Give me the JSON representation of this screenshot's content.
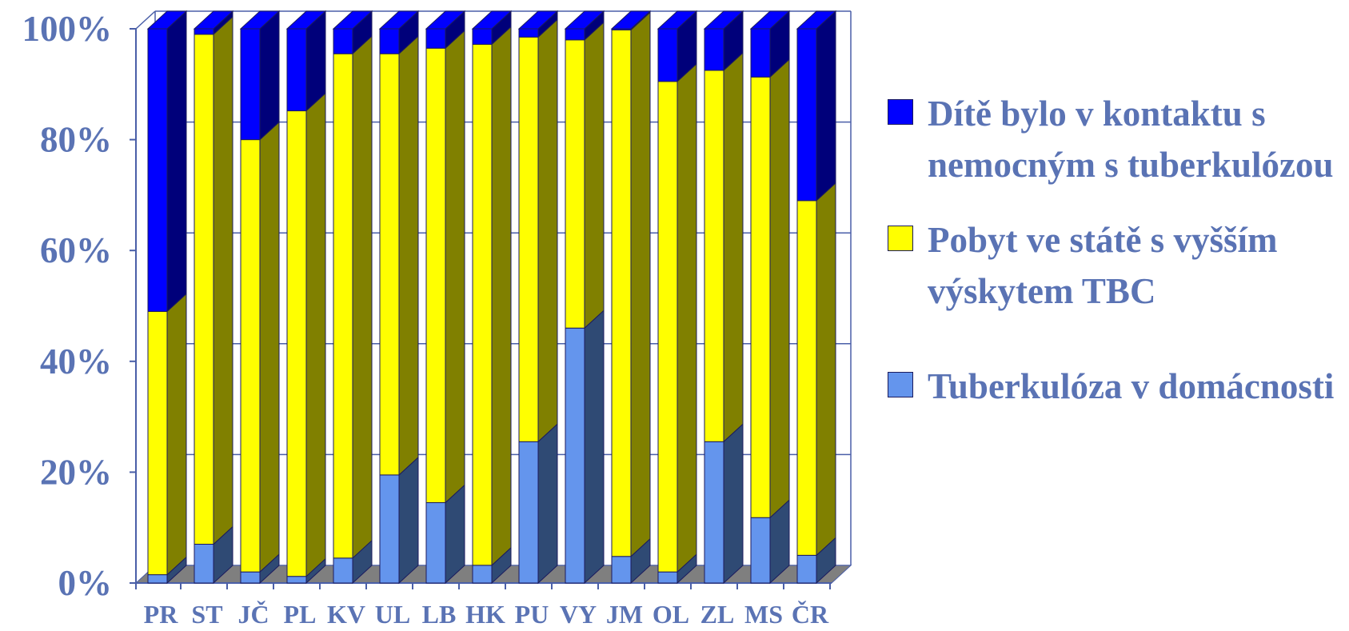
{
  "chart_data": {
    "type": "bar",
    "stacked": "percent",
    "three_d": true,
    "categories": [
      "PR",
      "ST",
      "JČ",
      "PL",
      "KV",
      "UL",
      "LB",
      "HK",
      "PU",
      "VY",
      "JM",
      "OL",
      "ZL",
      "MS",
      "ČR"
    ],
    "series": [
      {
        "key": "household",
        "name": "Tuberkulóza v domácnosti",
        "color": "#6495ed",
        "side_color": "#2f4a74",
        "values": [
          1.5,
          7,
          2,
          1.2,
          4.5,
          19.5,
          14.5,
          3.2,
          25.5,
          46,
          4.8,
          2,
          25.5,
          11.8,
          5
        ]
      },
      {
        "key": "stay",
        "name": "Pobyt  ve státě s vyšším výskytem TBC",
        "color": "#ffff00",
        "side_color": "#808000",
        "values": [
          47.5,
          92,
          78,
          84,
          91,
          76,
          82,
          94,
          73,
          52,
          95,
          88.5,
          67,
          79.5,
          64
        ]
      },
      {
        "key": "contact",
        "name": "Dítě bylo v kontaktu s nemocným s tuberkulózou",
        "color": "#0000ff",
        "side_color": "#00007a",
        "values": [
          51,
          1,
          20,
          14.8,
          4.5,
          4.5,
          3.5,
          2.8,
          1.5,
          2,
          0.2,
          9.5,
          7.5,
          8.7,
          31
        ]
      }
    ],
    "y_ticks": [
      "0%",
      "20%",
      "40%",
      "60%",
      "80%",
      "100%"
    ],
    "ylim": [
      0,
      100
    ],
    "grid": true,
    "legend_position": "right",
    "colors": {
      "axis_text": "#5a73b4",
      "wall_lines": "#4a5fa8",
      "floor": "#7f7f7f"
    }
  },
  "legend": {
    "contact": "Dítě bylo v kontaktu s nemocným s tuberkulózou",
    "stay": "Pobyt  ve státě s vyšším výskytem TBC",
    "household": "Tuberkulóza v domácnosti"
  }
}
